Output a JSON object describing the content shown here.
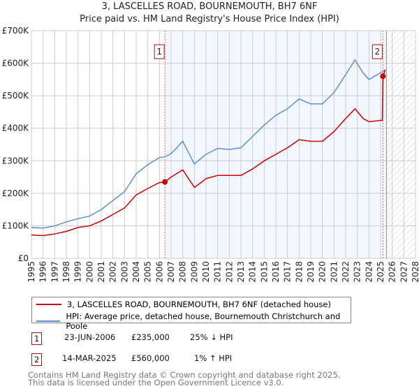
{
  "title": "3, LASCELLES ROAD, BOURNEMOUTH, BH7 6NF",
  "subtitle": "Price paid vs. HM Land Registry's House Price Index (HPI)",
  "chart_data": {
    "type": "line",
    "xlim": [
      1995,
      2028
    ],
    "ylim": [
      0,
      700000
    ],
    "yticks": [
      {
        "v": 0,
        "label": "£0"
      },
      {
        "v": 100000,
        "label": "£100K"
      },
      {
        "v": 200000,
        "label": "£200K"
      },
      {
        "v": 300000,
        "label": "£300K"
      },
      {
        "v": 400000,
        "label": "£400K"
      },
      {
        "v": 500000,
        "label": "£500K"
      },
      {
        "v": 600000,
        "label": "£600K"
      },
      {
        "v": 700000,
        "label": "£700K"
      }
    ],
    "xticks": [
      "1995",
      "1996",
      "1997",
      "1998",
      "1999",
      "2000",
      "2001",
      "2002",
      "2003",
      "2004",
      "2005",
      "2006",
      "2007",
      "2008",
      "2009",
      "2010",
      "2011",
      "2012",
      "2013",
      "2014",
      "2015",
      "2016",
      "2017",
      "2018",
      "2019",
      "2020",
      "2021",
      "2022",
      "2023",
      "2024",
      "2025",
      "2026",
      "2027",
      "2028"
    ],
    "grid": true,
    "shaded_range": [
      2006.47,
      2025.2
    ],
    "forecast_hatch_from": 2025.5,
    "series": [
      {
        "name": "3, LASCELLES ROAD, BOURNEMOUTH, BH7 6NF (detached house)",
        "color": "#cc0000",
        "x": [
          1995,
          1996,
          1997,
          1998,
          1999,
          2000,
          2001,
          2002,
          2003,
          2004,
          2005,
          2006,
          2006.47,
          2007,
          2008,
          2009,
          2010,
          2011,
          2012,
          2013,
          2014,
          2015,
          2016,
          2017,
          2018,
          2019,
          2020,
          2021,
          2022,
          2022.8,
          2023.5,
          2024,
          2025.15,
          2025.2,
          2025.4
        ],
        "y": [
          72000,
          70000,
          75000,
          83000,
          95000,
          100000,
          115000,
          135000,
          155000,
          195000,
          215000,
          233000,
          235000,
          250000,
          272000,
          218000,
          245000,
          255000,
          255000,
          255000,
          275000,
          300000,
          320000,
          340000,
          365000,
          360000,
          360000,
          390000,
          430000,
          460000,
          430000,
          420000,
          425000,
          560000,
          580000
        ]
      },
      {
        "name": "HPI: Average price, detached house, Bournemouth Christchurch and Poole",
        "color": "#5b8fd6",
        "x": [
          1995,
          1996,
          1997,
          1998,
          1999,
          2000,
          2001,
          2002,
          2003,
          2004,
          2005,
          2006,
          2006.47,
          2007,
          2008,
          2009,
          2010,
          2011,
          2012,
          2013,
          2014,
          2015,
          2016,
          2017,
          2018,
          2019,
          2020,
          2021,
          2022,
          2022.8,
          2023.5,
          2024,
          2025.2,
          2025.4
        ],
        "y": [
          95000,
          93000,
          100000,
          112000,
          122000,
          130000,
          150000,
          178000,
          205000,
          260000,
          288000,
          310000,
          312000,
          322000,
          360000,
          290000,
          320000,
          338000,
          335000,
          340000,
          375000,
          410000,
          440000,
          460000,
          490000,
          475000,
          475000,
          510000,
          565000,
          610000,
          570000,
          550000,
          575000,
          580000
        ]
      }
    ],
    "sales": [
      {
        "label": "1",
        "x": 2006.47,
        "y": 235000
      },
      {
        "label": "2",
        "x": 2025.2,
        "y": 560000
      }
    ]
  },
  "legend": [
    "3, LASCELLES ROAD, BOURNEMOUTH, BH7 6NF (detached house)",
    "HPI: Average price, detached house, Bournemouth Christchurch and Poole"
  ],
  "table": [
    {
      "num": "1",
      "date": "23-JUN-2006",
      "price": "£235,000",
      "hpi": "25% ↓ HPI"
    },
    {
      "num": "2",
      "date": "14-MAR-2025",
      "price": "£560,000",
      "hpi": "1% ↑ HPI"
    }
  ],
  "footer": [
    "Contains HM Land Registry data © Crown copyright and database right 2025.",
    "This data is licensed under the Open Government Licence v3.0."
  ]
}
